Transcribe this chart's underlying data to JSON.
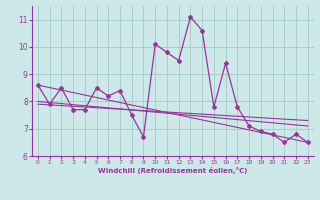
{
  "xlabel": "Windchill (Refroidissement éolien,°C)",
  "background_color": "#cde8e8",
  "grid_color": "#aacccc",
  "line_color": "#993399",
  "xlim": [
    -0.5,
    23.5
  ],
  "ylim": [
    6,
    11.5
  ],
  "xticks": [
    0,
    1,
    2,
    3,
    4,
    5,
    6,
    7,
    8,
    9,
    10,
    11,
    12,
    13,
    14,
    15,
    16,
    17,
    18,
    19,
    20,
    21,
    22,
    23
  ],
  "yticks": [
    6,
    7,
    8,
    9,
    10,
    11
  ],
  "hours": [
    0,
    1,
    2,
    3,
    4,
    5,
    6,
    7,
    8,
    9,
    10,
    11,
    12,
    13,
    14,
    15,
    16,
    17,
    18,
    19,
    20,
    21,
    22,
    23
  ],
  "windchill": [
    8.6,
    7.9,
    8.5,
    7.7,
    7.7,
    8.5,
    8.2,
    8.4,
    7.5,
    6.7,
    10.1,
    9.8,
    9.5,
    11.1,
    10.6,
    7.8,
    9.4,
    7.8,
    7.1,
    6.9,
    6.8,
    6.5,
    6.8,
    6.5
  ],
  "trend1_x": [
    0,
    23
  ],
  "trend1_y": [
    8.6,
    6.5
  ],
  "trend2_x": [
    0,
    23
  ],
  "trend2_y": [
    8.0,
    7.1
  ],
  "trend3_x": [
    0,
    23
  ],
  "trend3_y": [
    7.9,
    7.3
  ]
}
